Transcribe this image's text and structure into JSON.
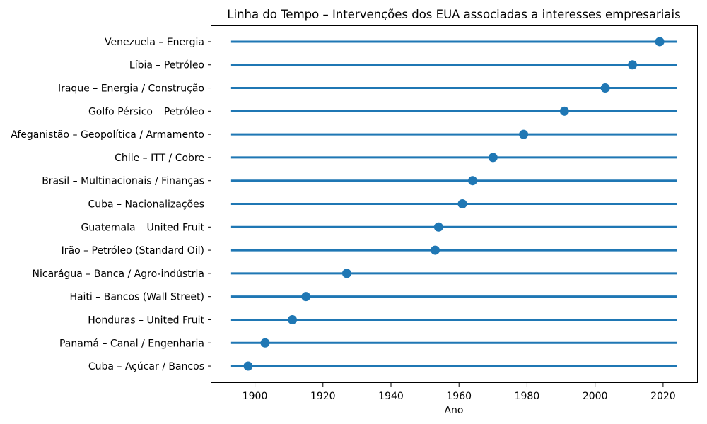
{
  "chart_data": {
    "type": "scatter",
    "subtype": "timeline-lollipop",
    "title": "Linha do Tempo – Intervenções dos EUA associadas a interesses empresariais",
    "xlabel": "Ano",
    "ylabel": "",
    "order": "top-to-bottom",
    "categories": [
      "Venezuela – Energia",
      "Líbia – Petróleo",
      "Iraque – Energia / Construção",
      "Golfo Pérsico – Petróleo",
      "Afeganistão – Geopolítica / Armamento",
      "Chile – ITT / Cobre",
      "Brasil – Multinacionais / Finanças",
      "Cuba – Nacionalizações",
      "Guatemala – United Fruit",
      "Irão – Petróleo (Standard Oil)",
      "Nicarágua – Banca / Agro-indústria",
      "Haiti – Bancos (Wall Street)",
      "Honduras – United Fruit",
      "Panamá – Canal / Engenharia",
      "Cuba – Açúcar / Bancos"
    ],
    "values": [
      2019,
      2011,
      2003,
      1991,
      1979,
      1970,
      1964,
      1961,
      1954,
      1953,
      1927,
      1915,
      1911,
      1903,
      1898
    ],
    "x_ticks": [
      1900,
      1920,
      1940,
      1960,
      1980,
      2000,
      2020
    ],
    "xlim": [
      1887,
      2030
    ],
    "line_span": [
      1893,
      2024
    ],
    "grid": false,
    "legend": "none",
    "accent_color": "#1f77b4",
    "axis_color": "#000000",
    "text_color": "#000000",
    "background_color": "#ffffff"
  }
}
